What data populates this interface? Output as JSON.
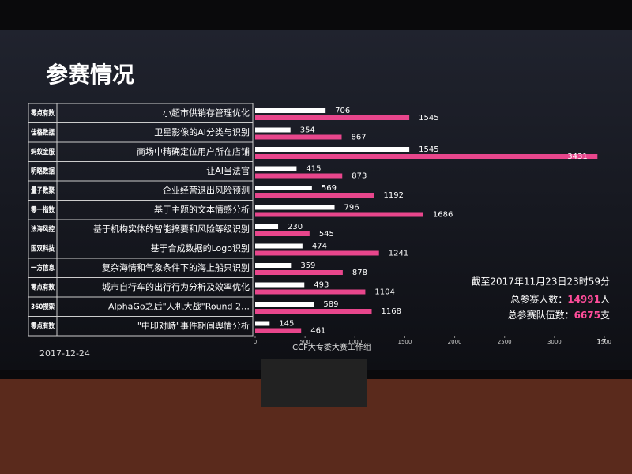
{
  "chart_data": {
    "type": "bar",
    "orientation": "horizontal",
    "title": "参赛情况",
    "categories": [
      "小超市供销存管理优化",
      "卫星影像的AI分类与识别",
      "商场中精确定位用户所在店铺",
      "让AI当法官",
      "企业经营退出风险预测",
      "基于主题的文本情感分析",
      "基于机构实体的智能摘要和风险等级识别",
      "基于合成数据的Logo识别",
      "复杂海情和气象条件下的海上船只识别",
      "城市自行车的出行行为分析及效率优化",
      "AlphaGo之后\"人机大战\"Round 2…",
      "\"中印对峙\"事件期间舆情分析"
    ],
    "sponsors": [
      "零点有数",
      "佳格数据",
      "蚂蚁金服",
      "明略数据",
      "量子数聚",
      "零一指数",
      "法海风控",
      "国双科技",
      "一方信息",
      "零点有数",
      "360搜索",
      "零点有数"
    ],
    "series": [
      {
        "color": "#ffffff",
        "values": [
          706,
          354,
          1545,
          415,
          569,
          796,
          230,
          474,
          359,
          493,
          589,
          145
        ]
      },
      {
        "color": "#e8468c",
        "values": [
          1545,
          867,
          3431,
          873,
          1192,
          1686,
          545,
          1241,
          878,
          1104,
          1168,
          461
        ]
      }
    ],
    "xlim": [
      0,
      3500
    ],
    "xticks": [
      0,
      500,
      1000,
      1500,
      2000,
      2500,
      3000,
      3500
    ],
    "footer": "CCF大专委大赛工作组",
    "date": "2017-12-24",
    "page_number": "17",
    "notes": {
      "cutoff": "截至2017年11月23日23时59分",
      "participants": {
        "label": "总参赛人数：",
        "value": "14991",
        "unit": "人"
      },
      "teams": {
        "label": "总参赛队伍数：",
        "value": "6675",
        "unit": "支"
      }
    }
  }
}
